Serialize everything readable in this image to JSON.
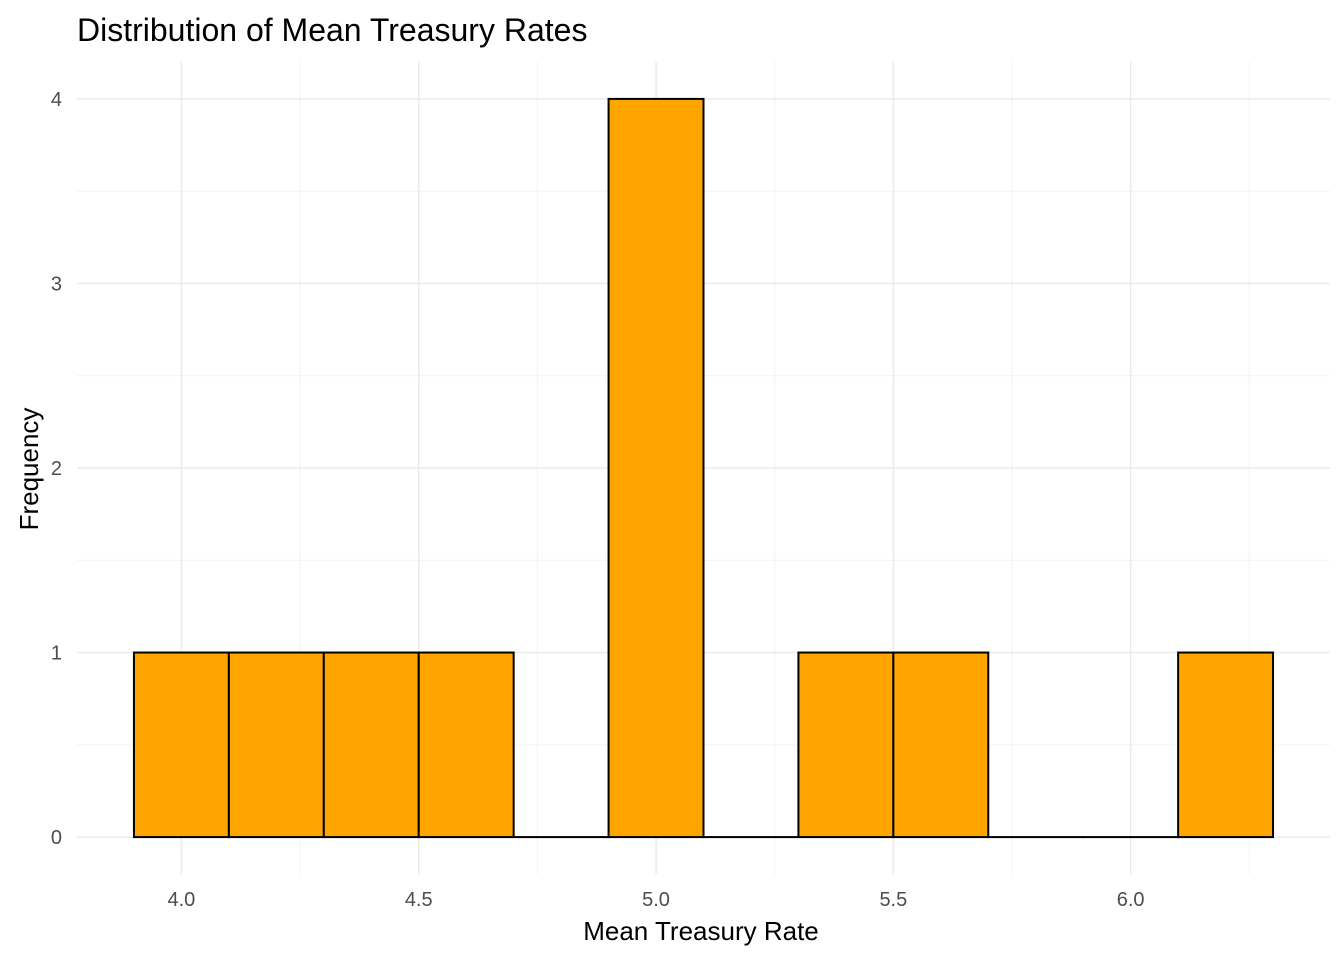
{
  "chart_data": {
    "type": "bar",
    "title": "Distribution of Mean Treasury Rates",
    "xlabel": "Mean Treasury Rate",
    "ylabel": "Frequency",
    "bin_width": 0.2,
    "bins": [
      {
        "start": 3.9,
        "end": 4.1,
        "count": 1
      },
      {
        "start": 4.1,
        "end": 4.3,
        "count": 1
      },
      {
        "start": 4.3,
        "end": 4.5,
        "count": 1
      },
      {
        "start": 4.5,
        "end": 4.7,
        "count": 1
      },
      {
        "start": 4.7,
        "end": 4.9,
        "count": 0
      },
      {
        "start": 4.9,
        "end": 5.1,
        "count": 4
      },
      {
        "start": 5.1,
        "end": 5.3,
        "count": 0
      },
      {
        "start": 5.3,
        "end": 5.5,
        "count": 1
      },
      {
        "start": 5.5,
        "end": 5.7,
        "count": 1
      },
      {
        "start": 5.7,
        "end": 5.9,
        "count": 0
      },
      {
        "start": 5.9,
        "end": 6.1,
        "count": 0
      },
      {
        "start": 6.1,
        "end": 6.3,
        "count": 1
      }
    ],
    "xlim": [
      3.78,
      6.42
    ],
    "ylim": [
      -0.2,
      4.2
    ],
    "x_ticks": [
      4.0,
      4.5,
      5.0,
      5.5,
      6.0
    ],
    "x_tick_labels": [
      "4.0",
      "4.5",
      "5.0",
      "5.5",
      "6.0"
    ],
    "y_ticks": [
      0,
      1,
      2,
      3,
      4
    ],
    "y_tick_labels": [
      "0",
      "1",
      "2",
      "3",
      "4"
    ],
    "fill_color": "#FFA500",
    "outline_color": "#000000",
    "grid": true,
    "legend": "none"
  }
}
